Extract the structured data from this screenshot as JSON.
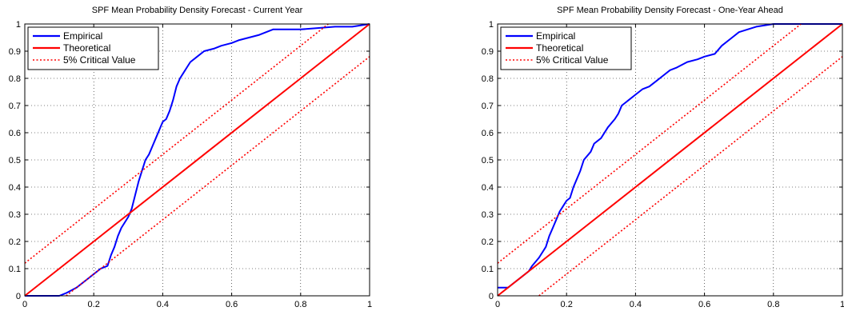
{
  "chart_data": [
    {
      "type": "line",
      "title": "SPF Mean Probability Density Forecast - Current Year",
      "xlabel": "",
      "ylabel": "",
      "xlim": [
        0,
        1
      ],
      "ylim": [
        0,
        1
      ],
      "grid": true,
      "legend_position": "top-left",
      "xticks": [
        "0",
        "0.2",
        "0.4",
        "0.6",
        "0.8",
        "1"
      ],
      "yticks": [
        "0",
        "0.1",
        "0.2",
        "0.3",
        "0.4",
        "0.5",
        "0.6",
        "0.7",
        "0.8",
        "0.9",
        "1"
      ],
      "series": [
        {
          "name": "Empirical",
          "style": "solid",
          "color": "#0000ff",
          "x": [
            0,
            0.1,
            0.12,
            0.15,
            0.18,
            0.2,
            0.22,
            0.24,
            0.25,
            0.26,
            0.27,
            0.28,
            0.3,
            0.31,
            0.32,
            0.33,
            0.34,
            0.35,
            0.36,
            0.37,
            0.38,
            0.39,
            0.4,
            0.41,
            0.42,
            0.43,
            0.44,
            0.45,
            0.46,
            0.47,
            0.48,
            0.5,
            0.52,
            0.55,
            0.57,
            0.6,
            0.62,
            0.65,
            0.68,
            0.7,
            0.72,
            0.75,
            0.8,
            0.9,
            0.95,
            1
          ],
          "y": [
            0,
            0,
            0.01,
            0.03,
            0.06,
            0.08,
            0.1,
            0.11,
            0.15,
            0.18,
            0.22,
            0.25,
            0.29,
            0.32,
            0.37,
            0.42,
            0.46,
            0.5,
            0.52,
            0.55,
            0.58,
            0.61,
            0.64,
            0.65,
            0.68,
            0.72,
            0.77,
            0.8,
            0.82,
            0.84,
            0.86,
            0.88,
            0.9,
            0.91,
            0.92,
            0.93,
            0.94,
            0.95,
            0.96,
            0.97,
            0.98,
            0.98,
            0.98,
            0.99,
            0.99,
            1
          ]
        },
        {
          "name": "Theoretical",
          "style": "solid",
          "color": "#ff0000",
          "x": [
            0,
            1
          ],
          "y": [
            0,
            1
          ]
        },
        {
          "name": "5% Critical Value",
          "style": "dotted",
          "color": "#ff0000",
          "x": [
            0,
            0.88
          ],
          "y": [
            0.12,
            1
          ]
        },
        {
          "name": "",
          "style": "dotted",
          "color": "#ff0000",
          "x": [
            0.12,
            1
          ],
          "y": [
            0,
            0.88
          ]
        }
      ]
    },
    {
      "type": "line",
      "title": "SPF Mean Probability Density Forecast - One-Year Ahead",
      "xlabel": "",
      "ylabel": "",
      "xlim": [
        0,
        1
      ],
      "ylim": [
        0,
        1
      ],
      "grid": true,
      "legend_position": "top-left",
      "xticks": [
        "0",
        "0.2",
        "0.4",
        "0.6",
        "0.8",
        "1"
      ],
      "yticks": [
        "0",
        "0.1",
        "0.2",
        "0.3",
        "0.4",
        "0.5",
        "0.6",
        "0.7",
        "0.8",
        "0.9",
        "1"
      ],
      "series": [
        {
          "name": "Empirical",
          "style": "solid",
          "color": "#0000ff",
          "x": [
            0,
            0.03,
            0.04,
            0.05,
            0.07,
            0.09,
            0.1,
            0.12,
            0.13,
            0.14,
            0.15,
            0.16,
            0.17,
            0.18,
            0.19,
            0.2,
            0.21,
            0.22,
            0.23,
            0.24,
            0.25,
            0.27,
            0.28,
            0.3,
            0.32,
            0.34,
            0.35,
            0.36,
            0.37,
            0.38,
            0.4,
            0.42,
            0.44,
            0.46,
            0.48,
            0.5,
            0.52,
            0.55,
            0.58,
            0.6,
            0.63,
            0.65,
            0.68,
            0.7,
            0.75,
            0.8,
            0.85,
            0.9,
            1
          ],
          "y": [
            0.03,
            0.03,
            0.04,
            0.05,
            0.07,
            0.09,
            0.11,
            0.14,
            0.16,
            0.18,
            0.22,
            0.25,
            0.28,
            0.31,
            0.33,
            0.35,
            0.36,
            0.4,
            0.43,
            0.46,
            0.5,
            0.53,
            0.56,
            0.58,
            0.62,
            0.65,
            0.67,
            0.7,
            0.71,
            0.72,
            0.74,
            0.76,
            0.77,
            0.79,
            0.81,
            0.83,
            0.84,
            0.86,
            0.87,
            0.88,
            0.89,
            0.92,
            0.95,
            0.97,
            0.99,
            1,
            1,
            1,
            1
          ]
        },
        {
          "name": "Theoretical",
          "style": "solid",
          "color": "#ff0000",
          "x": [
            0,
            1
          ],
          "y": [
            0,
            1
          ]
        },
        {
          "name": "5% Critical Value",
          "style": "dotted",
          "color": "#ff0000",
          "x": [
            0,
            0.88
          ],
          "y": [
            0.12,
            1
          ]
        },
        {
          "name": "",
          "style": "dotted",
          "color": "#ff0000",
          "x": [
            0.12,
            1
          ],
          "y": [
            0,
            0.88
          ]
        }
      ]
    }
  ]
}
